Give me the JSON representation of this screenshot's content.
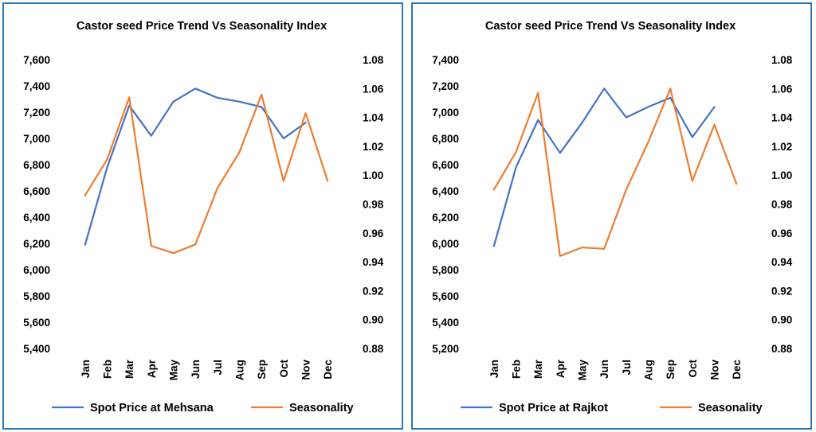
{
  "colors": {
    "price": "#4472c4",
    "seasonality": "#ed7d31",
    "border": "#2e75b6"
  },
  "chart_data": [
    {
      "type": "line",
      "title": "Castor seed Price Trend Vs Seasonality Index",
      "categories": [
        "Jan",
        "Feb",
        "Mar",
        "Apr",
        "May",
        "Jun",
        "Jul",
        "Aug",
        "Sep",
        "Oct",
        "Nov",
        "Dec"
      ],
      "y_left": {
        "ylim": [
          5400,
          7600
        ],
        "ticks": [
          "5,400",
          "5,600",
          "5,800",
          "6,000",
          "6,200",
          "6,400",
          "6,600",
          "6,800",
          "7,000",
          "7,200",
          "7,400",
          "7,600"
        ]
      },
      "y_right": {
        "ylim": [
          0.88,
          1.08
        ],
        "ticks": [
          "0.88",
          "0.90",
          "0.92",
          "0.94",
          "0.96",
          "0.98",
          "1.00",
          "1.02",
          "1.04",
          "1.06",
          "1.08"
        ]
      },
      "series": [
        {
          "name": "Spot Price at Mehsana",
          "axis": "left",
          "values": [
            6190,
            6780,
            7250,
            7020,
            7280,
            7380,
            7310,
            7280,
            7240,
            7000,
            7120,
            null
          ]
        },
        {
          "name": "Seasonality",
          "axis": "right",
          "values": [
            0.986,
            1.011,
            1.054,
            0.951,
            0.946,
            0.952,
            0.991,
            1.016,
            1.056,
            0.996,
            1.043,
            0.996
          ]
        }
      ],
      "legend": "bottom",
      "grid": false
    },
    {
      "type": "line",
      "title": "Castor seed Price Trend Vs Seasonality Index",
      "categories": [
        "Jan",
        "Feb",
        "Mar",
        "Apr",
        "May",
        "Jun",
        "Jul",
        "Aug",
        "Sep",
        "Oct",
        "Nov",
        "Dec"
      ],
      "y_left": {
        "ylim": [
          5200,
          7400
        ],
        "ticks": [
          "5,200",
          "5,400",
          "5,600",
          "5,800",
          "6,000",
          "6,200",
          "6,400",
          "6,600",
          "6,800",
          "7,000",
          "7,200",
          "7,400"
        ]
      },
      "y_right": {
        "ylim": [
          0.88,
          1.08
        ],
        "ticks": [
          "0.88",
          "0.90",
          "0.92",
          "0.94",
          "0.96",
          "0.98",
          "1.00",
          "1.02",
          "1.04",
          "1.06",
          "1.08"
        ]
      },
      "series": [
        {
          "name": "Spot Price at Rajkot",
          "axis": "left",
          "values": [
            5980,
            6580,
            6940,
            6690,
            6920,
            7180,
            6960,
            7040,
            7110,
            6810,
            7040,
            null
          ]
        },
        {
          "name": "Seasonality",
          "axis": "right",
          "values": [
            0.99,
            1.016,
            1.057,
            0.944,
            0.95,
            0.949,
            0.99,
            1.023,
            1.06,
            0.996,
            1.035,
            0.994
          ]
        }
      ],
      "legend": "bottom",
      "grid": false
    }
  ]
}
